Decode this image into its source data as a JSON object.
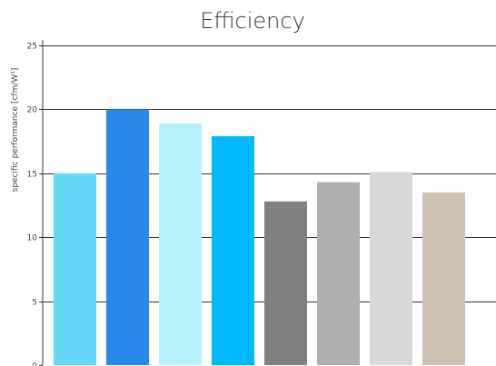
{
  "chart_data": {
    "type": "bar",
    "title": "Efficiency",
    "xlabel": "",
    "ylabel": "specific performance [cfm/W¹]",
    "ylim": [
      0,
      25
    ],
    "yticks": [
      0,
      5,
      10,
      15,
      20,
      25
    ],
    "grid": true,
    "categories": [
      "",
      "",
      "",
      "",
      "",
      "",
      "",
      ""
    ],
    "values": [
      15.0,
      20.0,
      18.9,
      17.9,
      12.8,
      14.3,
      15.1,
      13.5
    ],
    "colors": [
      "#66d8fa",
      "#2888ec",
      "#b4f1fc",
      "#00b8fc",
      "#808080",
      "#b0b0b0",
      "#d8d8d8",
      "#cec1b2"
    ]
  }
}
